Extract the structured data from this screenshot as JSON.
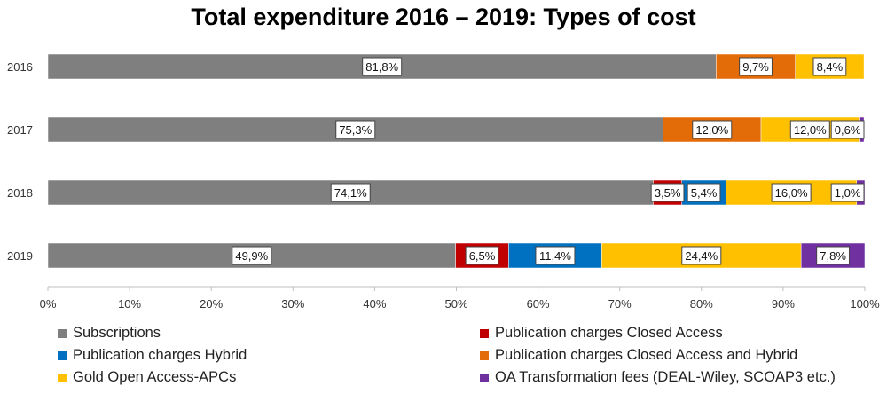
{
  "chart_data": {
    "type": "bar",
    "orientation": "horizontal",
    "stacked": true,
    "title": "Total expenditure 2016 – 2019: Types of cost",
    "categories": [
      "2016",
      "2017",
      "2018",
      "2019"
    ],
    "xlim": [
      0,
      100
    ],
    "x_ticks": [
      "0%",
      "10%",
      "20%",
      "30%",
      "40%",
      "50%",
      "60%",
      "70%",
      "80%",
      "90%",
      "100%"
    ],
    "grid": false,
    "legend_position": "bottom",
    "series": [
      {
        "name": "Subscriptions",
        "color": "#7f7f7f",
        "values": [
          81.8,
          75.3,
          74.1,
          49.9
        ],
        "labels": [
          "81,8%",
          "75,3%",
          "74,1%",
          "49,9%"
        ]
      },
      {
        "name": "Publication charges Closed Access",
        "color": "#c00000",
        "values": [
          0,
          0,
          3.5,
          6.5
        ],
        "labels": [
          "",
          "",
          "3,5%",
          "6,5%"
        ]
      },
      {
        "name": "Publication charges Hybrid",
        "color": "#0070c0",
        "values": [
          0,
          0,
          5.4,
          11.4
        ],
        "labels": [
          "",
          "",
          "5,4%",
          "11,4%"
        ]
      },
      {
        "name": "Publication charges Closed Access and Hybrid",
        "color": "#e36c09",
        "values": [
          9.7,
          12.0,
          0,
          0
        ],
        "labels": [
          "9,7%",
          "12,0%",
          "",
          ""
        ]
      },
      {
        "name": "Gold Open Access-APCs",
        "color": "#ffc000",
        "values": [
          8.4,
          12.0,
          16.0,
          24.4
        ],
        "labels": [
          "8,4%",
          "12,0%",
          "16,0%",
          "24,4%"
        ]
      },
      {
        "name": "OA Transformation fees (DEAL-Wiley, SCOAP3 etc.)",
        "color": "#7030a0",
        "values": [
          0,
          0.6,
          1.0,
          7.8
        ],
        "labels": [
          "",
          "0,6%",
          "1,0%",
          "7,8%"
        ]
      }
    ]
  }
}
